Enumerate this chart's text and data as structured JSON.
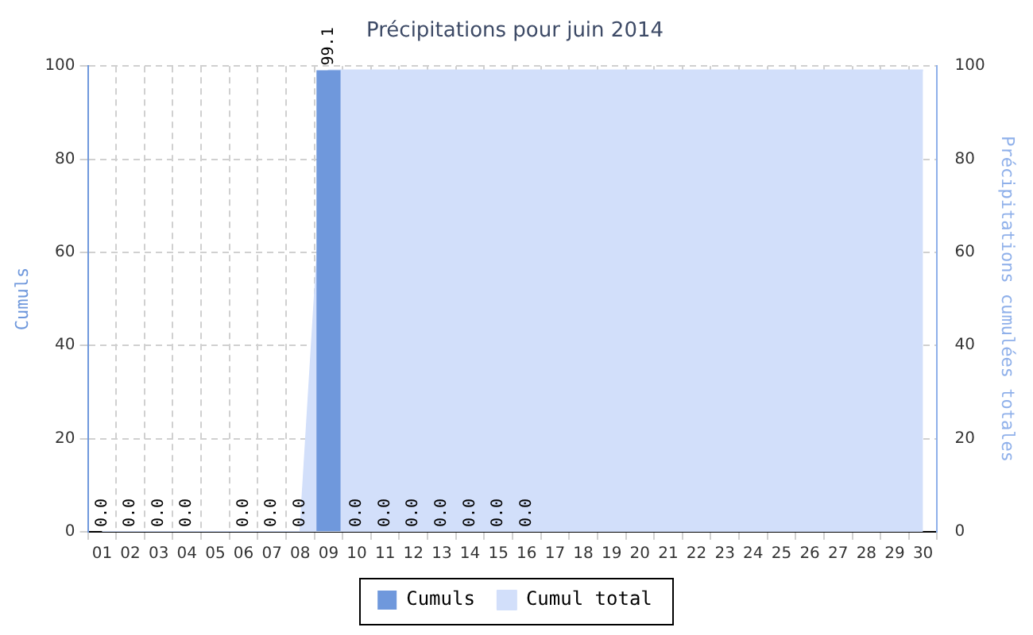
{
  "chart_data": {
    "type": "bar",
    "title": "Précipitations pour juin 2014",
    "ylabel": "Cumuls",
    "y2label": "Précipitations cumulées totales",
    "categories": [
      "01",
      "02",
      "03",
      "04",
      "05",
      "06",
      "07",
      "08",
      "09",
      "10",
      "11",
      "12",
      "13",
      "14",
      "15",
      "16",
      "17",
      "18",
      "19",
      "20",
      "21",
      "22",
      "23",
      "24",
      "25",
      "26",
      "27",
      "28",
      "29",
      "30"
    ],
    "series": [
      {
        "name": "Cumul total",
        "type": "area",
        "axis": "y2",
        "color": "#d2dffa",
        "values": [
          0,
          0,
          0,
          0,
          0,
          0,
          0,
          0,
          99.1,
          99.1,
          99.1,
          99.1,
          99.1,
          99.1,
          99.1,
          99.1,
          99.1,
          99.1,
          99.1,
          99.1,
          99.1,
          99.1,
          99.1,
          99.1,
          99.1,
          99.1,
          99.1,
          99.1,
          99.1,
          99.1
        ]
      },
      {
        "name": "Cumuls",
        "color": "#6f98dc",
        "values": [
          0,
          0,
          0,
          0,
          null,
          0,
          0,
          0,
          99.1,
          0,
          0,
          0,
          0,
          0,
          0,
          0,
          null,
          null,
          null,
          null,
          null,
          null,
          null,
          null,
          null,
          null,
          null,
          null,
          null,
          null
        ],
        "value_labels": [
          "0.0",
          "0.0",
          "0.0",
          "0.0",
          null,
          "0.0",
          "0.0",
          "0.0",
          "99.1",
          "0.0",
          "0.0",
          "0.0",
          "0.0",
          "0.0",
          "0.0",
          "0.0",
          null,
          null,
          null,
          null,
          null,
          null,
          null,
          null,
          null,
          null,
          null,
          null,
          null,
          null
        ]
      }
    ],
    "ylim": [
      0,
      100
    ],
    "yticks": [
      0,
      20,
      40,
      60,
      80,
      100
    ],
    "y2lim": [
      0,
      100
    ],
    "y2ticks": [
      0,
      20,
      40,
      60,
      80,
      100
    ],
    "grid": true,
    "legend": "bottom",
    "marker": "none"
  }
}
